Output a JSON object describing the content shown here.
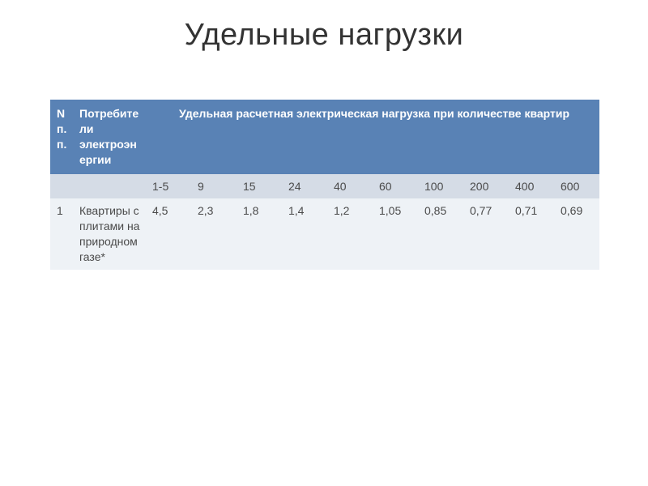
{
  "title": "Удельные нагрузки",
  "colors": {
    "header_bg": "#5982b5",
    "header_text": "#ffffff",
    "subhead_bg": "#d5dce6",
    "row_bg": "#eef2f6",
    "cell_text": "#4a4a4a",
    "title_text": "#333333",
    "page_bg": "#ffffff"
  },
  "typography": {
    "title_fontsize_pt": 29,
    "cell_fontsize_pt": 11,
    "title_weight": 400,
    "header_weight": 700
  },
  "table": {
    "header": {
      "col_index": "N п.п.",
      "col_consumer": "Потребители электроэнергии",
      "col_load_group": "Удельная расчетная электрическая нагрузка при количестве квартир"
    },
    "quantity_columns": [
      "1-5",
      "9",
      "15",
      "24",
      "40",
      "60",
      "100",
      "200",
      "400",
      "600"
    ],
    "rows": [
      {
        "n": "1",
        "consumer": "Квартиры с плитами на природном газе*",
        "values": [
          "4,5",
          "2,3",
          "1,8",
          "1,4",
          "1,2",
          "1,05",
          "0,85",
          "0,77",
          "0,71",
          "0,69"
        ]
      }
    ]
  }
}
